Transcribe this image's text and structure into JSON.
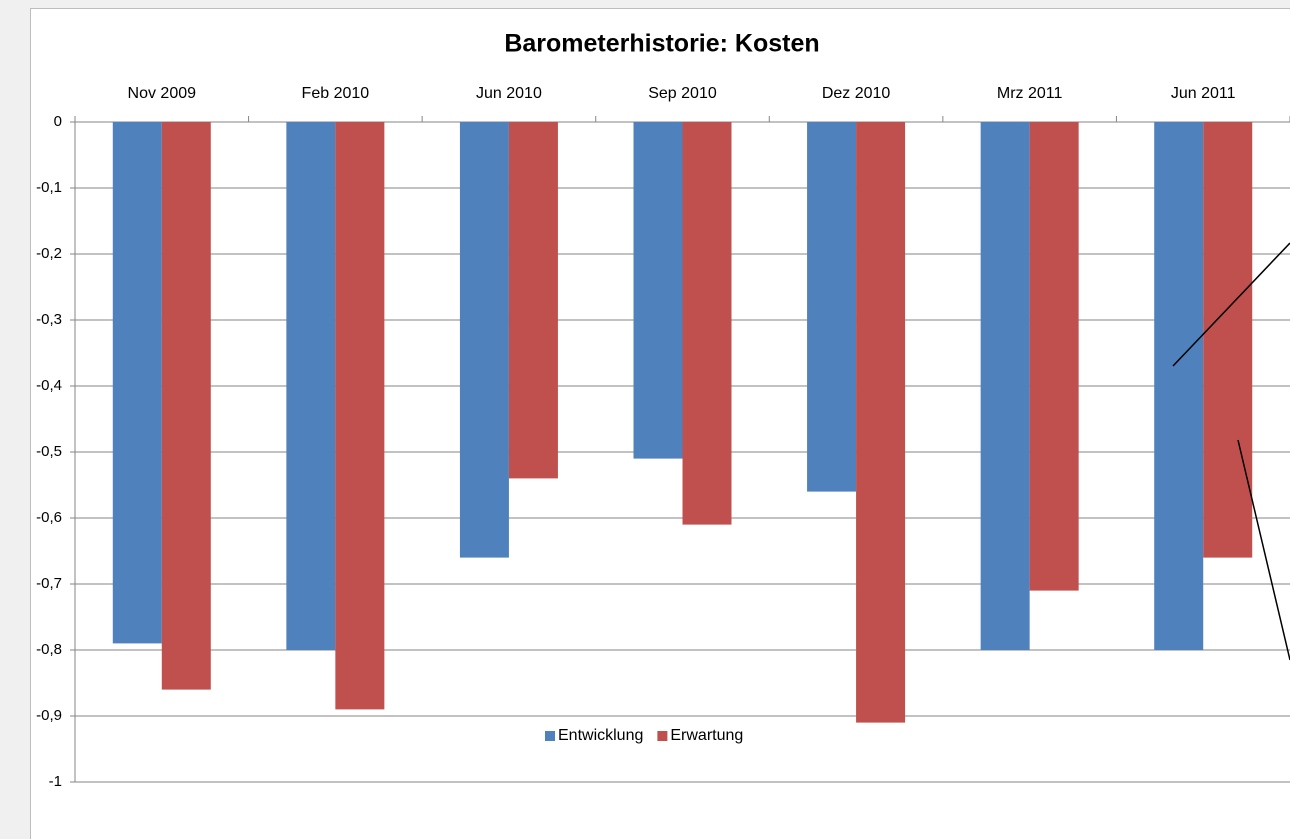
{
  "chart_data": {
    "type": "bar",
    "title": "Barometerhistorie: Kosten",
    "categories": [
      "Nov 2009",
      "Feb 2010",
      "Jun 2010",
      "Sep 2010",
      "Dez 2010",
      "Mrz 2011",
      "Jun 2011"
    ],
    "series": [
      {
        "name": "Entwicklung",
        "color": "#4f81bd",
        "values": [
          -0.79,
          -0.8,
          -0.66,
          -0.51,
          -0.56,
          -0.8,
          -0.8
        ]
      },
      {
        "name": "Erwartung",
        "color": "#c0504d",
        "values": [
          -0.86,
          -0.89,
          -0.54,
          -0.61,
          -0.91,
          -0.71,
          -0.66
        ]
      }
    ],
    "ylim": [
      -1,
      0
    ],
    "yticks": [
      0,
      {
        "value": -0.1,
        "label": "-0,1"
      },
      {
        "value": -0.2,
        "label": "-0,2"
      },
      {
        "value": -0.3,
        "label": "-0,3"
      },
      {
        "value": -0.4,
        "label": "-0,4"
      },
      {
        "value": -0.5,
        "label": "-0,5"
      },
      {
        "value": -0.6,
        "label": "-0,6"
      },
      {
        "value": -0.7,
        "label": "-0,7"
      },
      {
        "value": -0.8,
        "label": "-0,8"
      },
      {
        "value": -0.9,
        "label": "-0,9"
      },
      -1
    ],
    "grid": true,
    "legend": "bottom"
  }
}
